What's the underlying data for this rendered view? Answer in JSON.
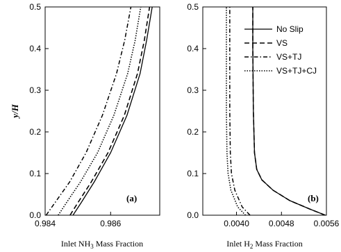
{
  "chart_data": [
    {
      "type": "line",
      "panel_label": "(a)",
      "xlabel": {
        "prefix": "Inlet NH",
        "sub": "3",
        "suffix": " Mass Fraction"
      },
      "ylabel": {
        "main": "y/H"
      },
      "xlim": [
        0.984,
        0.9875
      ],
      "ylim": [
        0,
        0.5
      ],
      "xticks": [
        0.984,
        0.986
      ],
      "xtick_labels": [
        "0.984",
        "0.986"
      ],
      "yticks": [
        0,
        0.1,
        0.2,
        0.3,
        0.4,
        0.5
      ],
      "ytick_labels": [
        "0.0",
        "0.1",
        "0.2",
        "0.3",
        "0.4",
        "0.5"
      ],
      "grid": false,
      "series": [
        {
          "name": "No Slip",
          "style": "solid",
          "x": [
            0.98485,
            0.9851,
            0.9855,
            0.986,
            0.9865,
            0.9869,
            0.9871,
            0.98727
          ],
          "y": [
            0.0,
            0.03,
            0.08,
            0.15,
            0.24,
            0.34,
            0.42,
            0.5
          ]
        },
        {
          "name": "VS",
          "style": "dashed",
          "x": [
            0.98476,
            0.985,
            0.98541,
            0.98592,
            0.98642,
            0.98682,
            0.98703,
            0.98719
          ],
          "y": [
            0.0,
            0.03,
            0.08,
            0.15,
            0.24,
            0.34,
            0.42,
            0.5
          ]
        },
        {
          "name": "VS+TJ",
          "style": "dashdot",
          "x": [
            0.98403,
            0.9843,
            0.98475,
            0.98525,
            0.98575,
            0.98618,
            0.98643,
            0.98662
          ],
          "y": [
            0.0,
            0.03,
            0.08,
            0.15,
            0.24,
            0.34,
            0.42,
            0.5
          ]
        },
        {
          "name": "VS+TJ+CJ",
          "style": "dotted",
          "x": [
            0.9844,
            0.98465,
            0.98508,
            0.9856,
            0.9861,
            0.98652,
            0.98675,
            0.98692
          ],
          "y": [
            0.0,
            0.03,
            0.08,
            0.15,
            0.24,
            0.34,
            0.42,
            0.5
          ]
        }
      ]
    },
    {
      "type": "line",
      "panel_label": "(b)",
      "xlabel": {
        "prefix": "Inlet H",
        "sub": "2",
        "suffix": " Mass Fraction"
      },
      "xlim": [
        0.0034,
        0.0056
      ],
      "ylim": [
        0,
        0.5
      ],
      "xticks": [
        0.004,
        0.0048,
        0.0056
      ],
      "xtick_labels": [
        "0.0040",
        "0.0048",
        "0.0056"
      ],
      "yticks": [
        0,
        0.1,
        0.2,
        0.3,
        0.4,
        0.5
      ],
      "ytick_labels": [
        "0.0",
        "0.1",
        "0.2",
        "0.3",
        "0.4",
        "0.5"
      ],
      "grid": false,
      "legend": {
        "position": "top-right",
        "entries": [
          "No Slip",
          "VS",
          "VS+TJ",
          "VS+TJ+CJ"
        ]
      },
      "series": [
        {
          "name": "No Slip",
          "style": "solid",
          "x": [
            0.00558,
            0.0053,
            0.00495,
            0.00465,
            0.00445,
            0.00436,
            0.00432,
            0.0043,
            0.00429,
            0.00429
          ],
          "y": [
            0.0,
            0.015,
            0.035,
            0.06,
            0.085,
            0.11,
            0.15,
            0.25,
            0.4,
            0.5
          ]
        },
        {
          "name": "VS",
          "style": "dashed",
          "x": [
            0.00558,
            0.0053,
            0.00495,
            0.00465,
            0.00445,
            0.00436,
            0.00432,
            0.0043,
            0.00429,
            0.00429
          ],
          "y": [
            0.0,
            0.015,
            0.035,
            0.06,
            0.085,
            0.11,
            0.15,
            0.25,
            0.4,
            0.5
          ]
        },
        {
          "name": "VS+TJ",
          "style": "dashdot",
          "x": [
            0.00424,
            0.0041,
            0.00397,
            0.00391,
            0.00389,
            0.00388,
            0.00388,
            0.00388
          ],
          "y": [
            0.0,
            0.02,
            0.06,
            0.1,
            0.15,
            0.25,
            0.4,
            0.5
          ]
        },
        {
          "name": "VS+TJ+CJ",
          "style": "dotted",
          "x": [
            0.00416,
            0.00402,
            0.0039,
            0.00385,
            0.00383,
            0.00382,
            0.00382,
            0.00382
          ],
          "y": [
            0.0,
            0.02,
            0.06,
            0.1,
            0.15,
            0.25,
            0.4,
            0.5
          ]
        }
      ]
    }
  ]
}
